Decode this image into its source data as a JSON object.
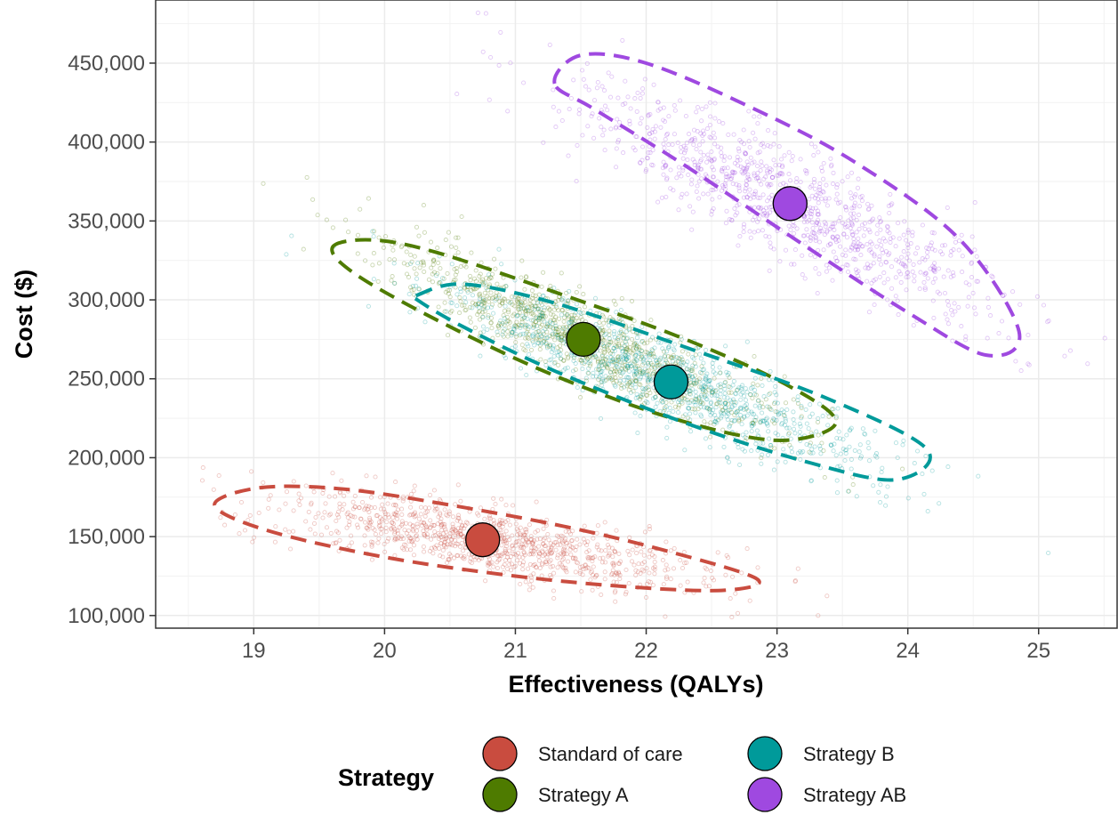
{
  "chart_data": {
    "type": "scatter",
    "title": "",
    "xlabel": "Effectiveness (QALYs)",
    "ylabel": "Cost ($)",
    "xlim": [
      18.25,
      25.6
    ],
    "ylim": [
      92000,
      490000
    ],
    "x_ticks": [
      19,
      20,
      21,
      22,
      23,
      24,
      25
    ],
    "x_tick_labels": [
      "19",
      "20",
      "21",
      "22",
      "23",
      "24",
      "25"
    ],
    "y_ticks": [
      100000,
      150000,
      200000,
      250000,
      300000,
      350000,
      400000,
      450000
    ],
    "y_tick_labels": [
      "100,000",
      "150,000",
      "200,000",
      "250,000",
      "300,000",
      "350,000",
      "400,000",
      "450,000"
    ],
    "grid": true,
    "legend": {
      "title": "Strategy",
      "placement": "bottom"
    },
    "series": [
      {
        "name": "Standard of care",
        "color": "#c94c3f",
        "mean": {
          "x": 20.75,
          "y": 148000
        },
        "scatter": {
          "sd_x": 0.82,
          "sd_y": 15000,
          "corr": -0.72,
          "n": 1000
        },
        "ellipse": {
          "points": [
            [
              18.7,
              170000
            ],
            [
              19.05,
              181000
            ],
            [
              19.7,
              180000
            ],
            [
              20.5,
              170000
            ],
            [
              21.4,
              156000
            ],
            [
              22.2,
              140000
            ],
            [
              22.85,
              123000
            ],
            [
              22.6,
              116000
            ],
            [
              21.9,
              118000
            ],
            [
              21.0,
              125000
            ],
            [
              20.0,
              137000
            ],
            [
              19.1,
              154000
            ]
          ]
        }
      },
      {
        "name": "Strategy A",
        "color": "#4e7b00",
        "mean": {
          "x": 21.52,
          "y": 275000
        },
        "scatter": {
          "sd_x": 0.78,
          "sd_y": 30000,
          "corr": -0.9,
          "n": 1000
        },
        "ellipse": {
          "points": [
            [
              19.6,
              333000
            ],
            [
              19.9,
              338000
            ],
            [
              20.4,
              330000
            ],
            [
              21.3,
              305000
            ],
            [
              22.3,
              275000
            ],
            [
              23.1,
              245000
            ],
            [
              23.45,
              222000
            ],
            [
              23.0,
              211000
            ],
            [
              22.2,
              225000
            ],
            [
              21.3,
              252000
            ],
            [
              20.5,
              283000
            ],
            [
              19.8,
              315000
            ]
          ]
        }
      },
      {
        "name": "Strategy B",
        "color": "#009a9a",
        "mean": {
          "x": 22.19,
          "y": 248000
        },
        "scatter": {
          "sd_x": 0.85,
          "sd_y": 30000,
          "corr": -0.9,
          "n": 1000
        },
        "ellipse": {
          "points": [
            [
              20.25,
              303000
            ],
            [
              20.6,
              310000
            ],
            [
              21.3,
              298000
            ],
            [
              22.3,
              270000
            ],
            [
              23.4,
              237000
            ],
            [
              24.15,
              205000
            ],
            [
              23.9,
              186000
            ],
            [
              23.2,
              198000
            ],
            [
              22.3,
              222000
            ],
            [
              21.3,
              255000
            ],
            [
              20.6,
              283000
            ],
            [
              20.25,
              300000
            ]
          ]
        }
      },
      {
        "name": "Strategy AB",
        "color": "#9f49e0",
        "mean": {
          "x": 23.1,
          "y": 361000
        },
        "scatter": {
          "sd_x": 0.85,
          "sd_y": 38000,
          "corr": -0.88,
          "n": 1000
        },
        "ellipse": {
          "points": [
            [
              21.3,
              437000
            ],
            [
              21.5,
              455000
            ],
            [
              22.0,
              450000
            ],
            [
              22.8,
              422000
            ],
            [
              23.6,
              387000
            ],
            [
              24.4,
              338000
            ],
            [
              24.85,
              280000
            ],
            [
              24.6,
              265000
            ],
            [
              24.0,
              292000
            ],
            [
              23.2,
              335000
            ],
            [
              22.3,
              385000
            ],
            [
              21.6,
              421000
            ]
          ]
        }
      }
    ]
  }
}
